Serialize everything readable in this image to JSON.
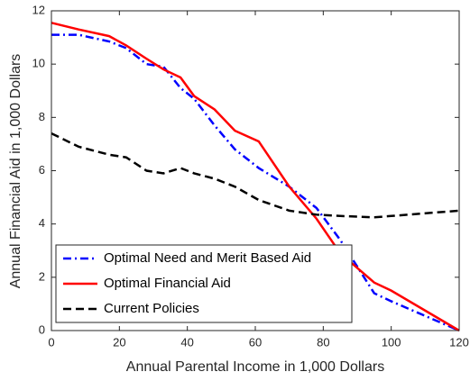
{
  "chart_data": {
    "type": "line",
    "xlabel": "Annual Parental Income in 1,000 Dollars",
    "ylabel": "Annual Financial Aid in 1,000 Dollars",
    "x": [
      0,
      8,
      17,
      22,
      28,
      33,
      38,
      42,
      48,
      54,
      61,
      70,
      78,
      85,
      95,
      100,
      120
    ],
    "series": [
      {
        "name": "Optimal Need and Merit Based Aid",
        "color": "#0000ff",
        "dash": "dashdot",
        "values": [
          11.1,
          11.1,
          10.85,
          10.6,
          10.0,
          9.9,
          9.1,
          8.7,
          7.7,
          6.8,
          6.1,
          5.4,
          4.6,
          3.4,
          1.4,
          1.1,
          0
        ]
      },
      {
        "name": "Optimal Financial Aid",
        "color": "#ff0000",
        "dash": "solid",
        "values": [
          11.55,
          11.3,
          11.05,
          10.7,
          10.2,
          9.8,
          9.5,
          8.8,
          8.3,
          7.5,
          7.1,
          5.4,
          4.2,
          2.9,
          1.8,
          1.5,
          0
        ]
      },
      {
        "name": "Current Policies",
        "color": "#000000",
        "dash": "dashed",
        "values": [
          7.4,
          6.9,
          6.6,
          6.5,
          6.0,
          5.9,
          6.1,
          5.9,
          5.7,
          5.4,
          4.9,
          4.5,
          4.35,
          4.3,
          4.25,
          4.3,
          4.5
        ]
      }
    ],
    "xlim": [
      0,
      120
    ],
    "xticks": [
      0,
      20,
      40,
      60,
      80,
      100,
      120
    ],
    "ylim": [
      0,
      12
    ],
    "yticks": [
      0,
      2,
      4,
      6,
      8,
      10,
      12
    ],
    "legend": "lower left"
  }
}
